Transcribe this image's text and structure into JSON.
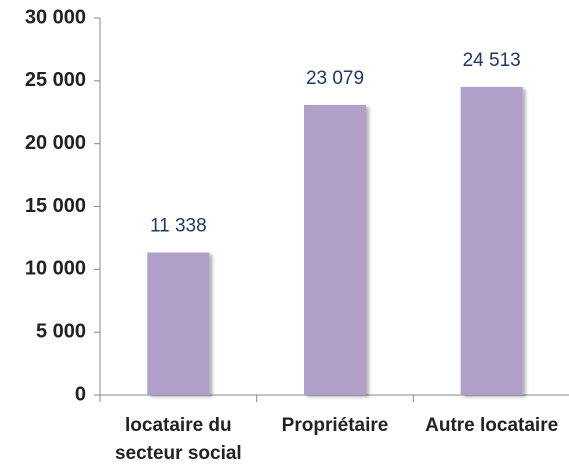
{
  "chart_data": {
    "type": "bar",
    "categories": [
      "locataire du secteur social",
      "Propriétaire",
      "Autre locataire"
    ],
    "values": [
      11338,
      23079,
      24513
    ],
    "value_labels": [
      "11 338",
      "23 079",
      "24 513"
    ],
    "color": "#b09fc8",
    "ylim": [
      0,
      30000
    ],
    "yticks": [
      0,
      {
        "value": 5000,
        "label": "5 000"
      },
      {
        "value": 10000,
        "label": "10 000"
      },
      {
        "value": 15000,
        "label": "15 000"
      },
      {
        "value": 20000,
        "label": "20 000"
      },
      {
        "value": 25000,
        "label": "25 000"
      },
      {
        "value": 30000,
        "label": "30 000"
      }
    ],
    "grid": false
  }
}
